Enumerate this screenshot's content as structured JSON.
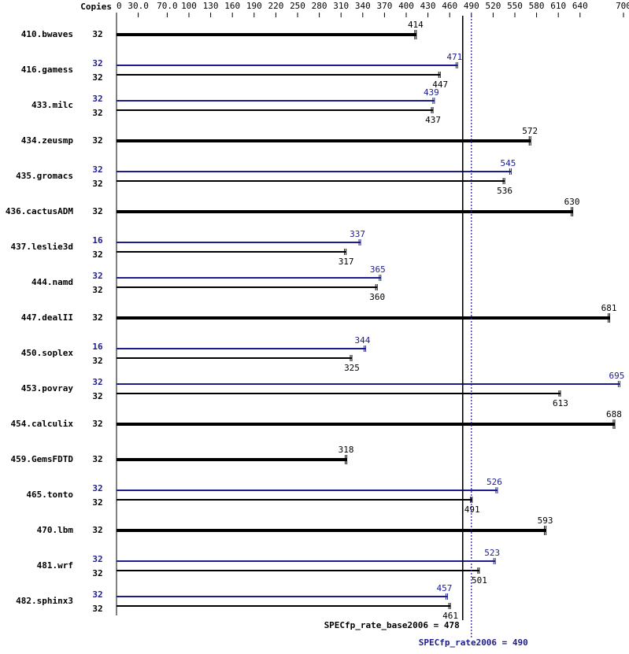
{
  "chart_data": {
    "type": "bar",
    "orientation": "horizontal",
    "copies_header": "Copies",
    "categories": [
      "410.bwaves",
      "416.gamess",
      "433.milc",
      "434.zeusmp",
      "435.gromacs",
      "436.cactusADM",
      "437.leslie3d",
      "444.namd",
      "447.dealII",
      "450.soplex",
      "453.povray",
      "454.calculix",
      "459.GemsFDTD",
      "465.tonto",
      "470.lbm",
      "481.wrf",
      "482.sphinx3"
    ],
    "series": [
      {
        "color": "#000000",
        "copies": [
          32,
          32,
          32,
          32,
          32,
          32,
          32,
          32,
          32,
          32,
          32,
          32,
          32,
          32,
          32,
          32,
          32
        ],
        "values": [
          414,
          447,
          437,
          572,
          536,
          630,
          317,
          360,
          681,
          325,
          613,
          688,
          318,
          491,
          593,
          501,
          461
        ]
      },
      {
        "color": "#1c1c8c",
        "copies": [
          null,
          32,
          32,
          null,
          32,
          null,
          16,
          32,
          null,
          16,
          32,
          null,
          null,
          32,
          null,
          32,
          32
        ],
        "values": [
          null,
          471,
          439,
          null,
          545,
          null,
          337,
          365,
          null,
          344,
          695,
          null,
          null,
          526,
          null,
          523,
          457
        ]
      }
    ],
    "xlim": [
      0,
      700
    ],
    "xticks": [
      0,
      {
        "value": 30,
        "label": "30.0"
      },
      {
        "value": 70,
        "label": "70.0"
      },
      100,
      130,
      160,
      190,
      220,
      250,
      280,
      310,
      340,
      370,
      400,
      430,
      460,
      490,
      520,
      550,
      580,
      610,
      640,
      700
    ],
    "reference_lines": [
      {
        "label": "SPECfp_rate_base2006 = 478",
        "value": 478,
        "color": "#000000",
        "style": "solid"
      },
      {
        "label": "SPECfp_rate2006 = 490",
        "value": 490,
        "color": "#1c1c8c",
        "style": "dotted"
      }
    ]
  }
}
